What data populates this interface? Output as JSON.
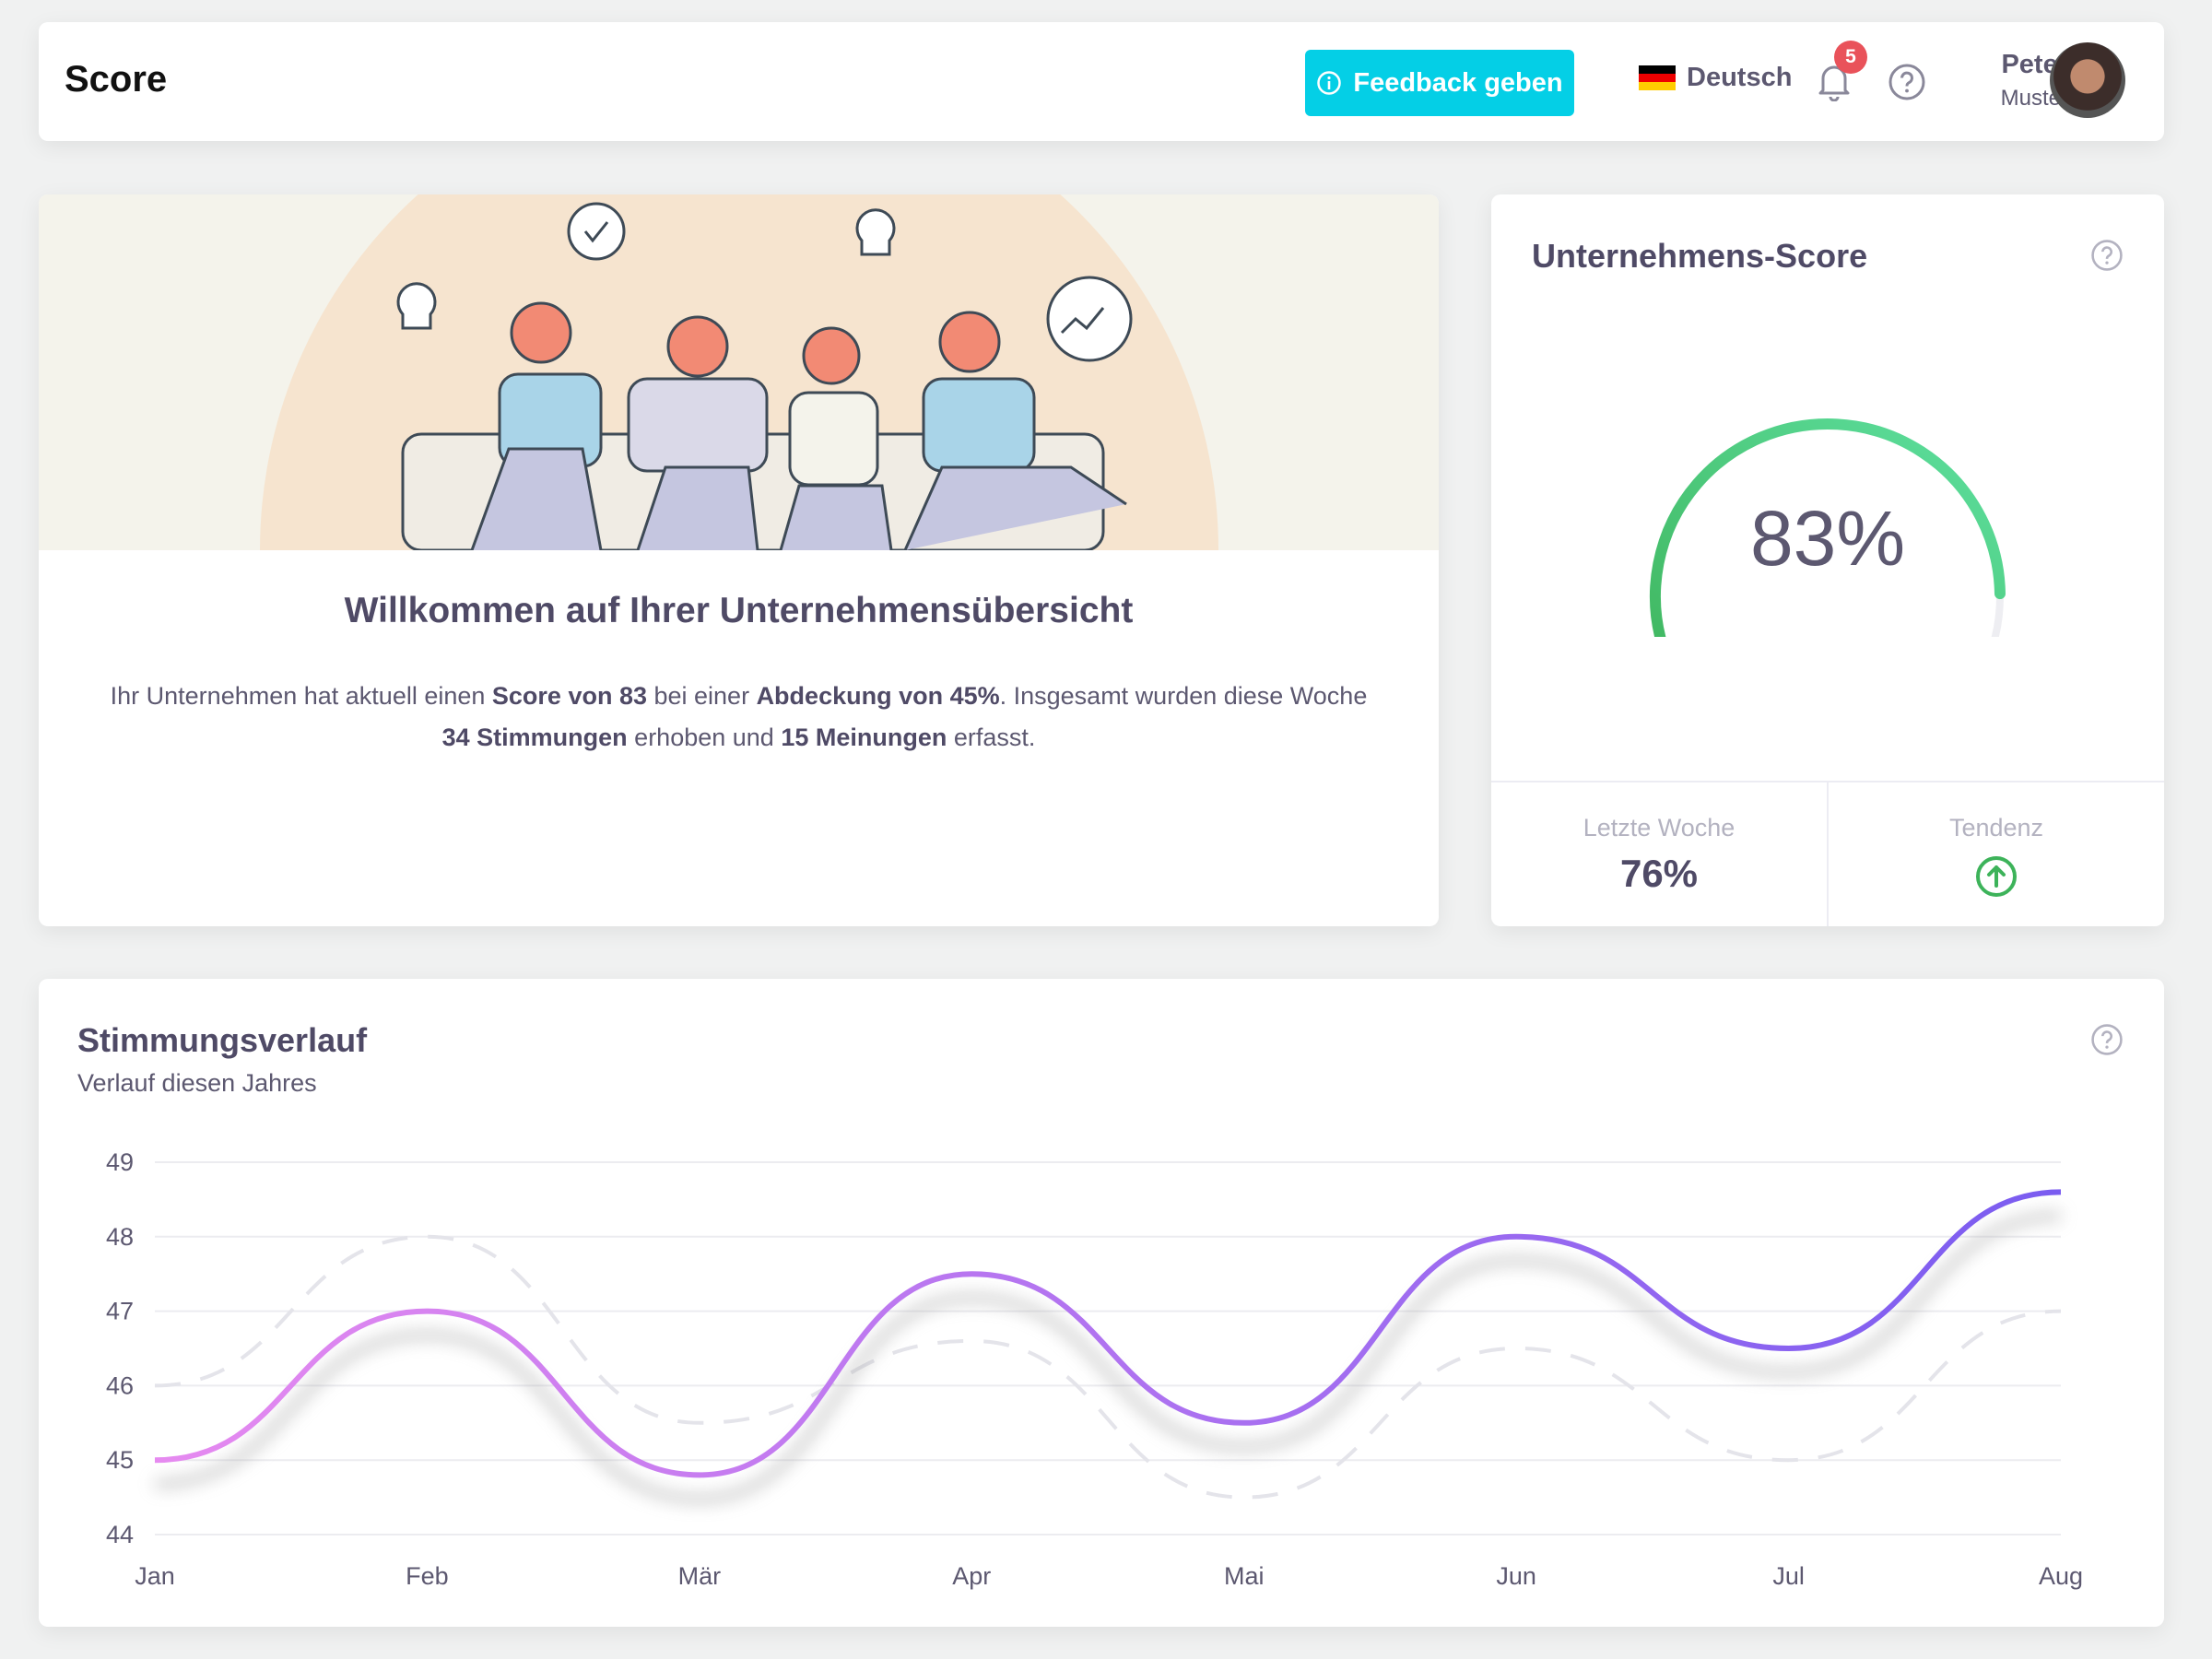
{
  "header": {
    "title": "Score",
    "feedback_label": "Feedback geben",
    "language": "Deutsch",
    "notifications_count": "5",
    "user_first": "Peter",
    "user_last": "Muster"
  },
  "hero": {
    "title": "Willkommen auf Ihrer Unternehmensübersicht",
    "text": {
      "p1": "Ihr Unternehmen hat aktuell einen ",
      "b1": "Score von 83",
      "p2": " bei einer ",
      "b2": "Abdeckung von 45%",
      "p3": ". Insgesamt wurden diese Woche ",
      "b3": "34 Stimmungen",
      "p4": " erhoben und ",
      "b4": "15 Meinungen",
      "p5": " erfasst."
    }
  },
  "score": {
    "title": "Unternehmens-Score",
    "value_label": "83%",
    "value": 83,
    "last_week_label": "Letzte Woche",
    "last_week_value": "76%",
    "trend_label": "Tendenz",
    "trend": "up",
    "gauge_colors": [
      "#3db35a",
      "#5ee0a0"
    ]
  },
  "chart_data": {
    "type": "line",
    "title": "Stimmungsverlauf",
    "subtitle": "Verlauf diesen Jahres",
    "categories": [
      "Jan",
      "Feb",
      "Mär",
      "Apr",
      "Mai",
      "Jun",
      "Jul",
      "Aug"
    ],
    "ylim": [
      44,
      49
    ],
    "yticks": [
      44,
      45,
      46,
      47,
      48,
      49
    ],
    "grid": true,
    "series": [
      {
        "values": [
          45,
          47,
          44.8,
          47.5,
          45.5,
          48,
          46.5,
          48.6
        ],
        "style": "solid",
        "colors": [
          "#e68af0",
          "#7a5cf0"
        ]
      },
      {
        "values": [
          46,
          48,
          45.5,
          46.6,
          44.5,
          46.5,
          45,
          47
        ],
        "style": "dashed",
        "color": "#e4e4ea"
      }
    ]
  }
}
